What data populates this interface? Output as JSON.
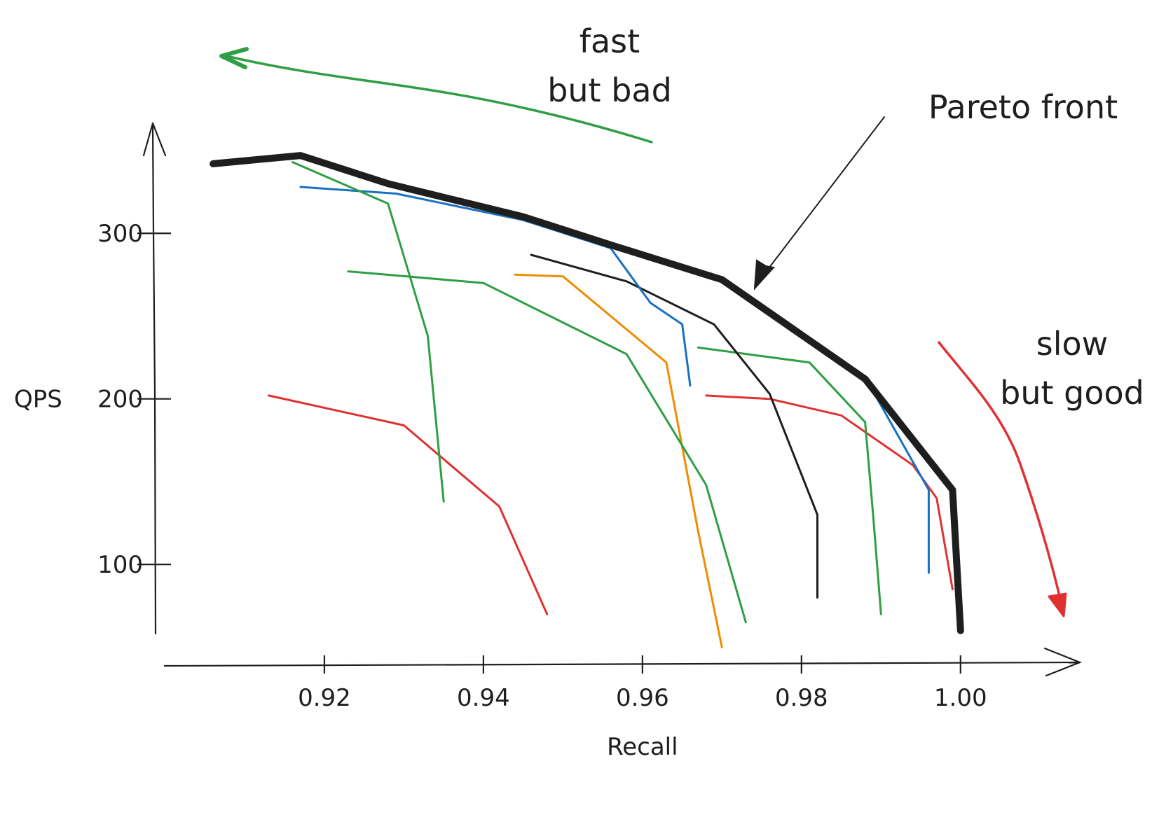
{
  "chart_data": {
    "type": "line",
    "xlabel": "Recall",
    "ylabel": "QPS",
    "xlim": [
      0.9,
      1.015
    ],
    "ylim": [
      40,
      350
    ],
    "x_ticks": [
      0.92,
      0.94,
      0.96,
      0.98,
      1.0
    ],
    "x_tick_labels": [
      "0.92",
      "0.94",
      "0.96",
      "0.98",
      "1.00"
    ],
    "y_ticks": [
      100,
      200,
      300
    ],
    "y_tick_labels": [
      "100",
      "200",
      "300"
    ],
    "series": [
      {
        "color": "#1e1e1e",
        "style": "pareto",
        "points": [
          [
            0.906,
            342
          ],
          [
            0.917,
            347
          ],
          [
            0.928,
            330
          ],
          [
            0.945,
            310
          ],
          [
            0.956,
            293
          ],
          [
            0.97,
            272
          ],
          [
            0.988,
            212
          ],
          [
            0.999,
            145
          ],
          [
            1.0,
            60
          ]
        ]
      },
      {
        "color": "#2f9e44",
        "points": [
          [
            0.916,
            343
          ],
          [
            0.928,
            318
          ],
          [
            0.931,
            270
          ],
          [
            0.933,
            238
          ],
          [
            0.935,
            138
          ]
        ]
      },
      {
        "color": "#1971c2",
        "points": [
          [
            0.917,
            328
          ],
          [
            0.929,
            324
          ],
          [
            0.945,
            308
          ],
          [
            0.956,
            291
          ],
          [
            0.961,
            258
          ],
          [
            0.965,
            245
          ],
          [
            0.966,
            208
          ]
        ]
      },
      {
        "color": "#2f9e44",
        "points": [
          [
            0.923,
            277
          ],
          [
            0.94,
            270
          ],
          [
            0.958,
            227
          ],
          [
            0.968,
            148
          ],
          [
            0.973,
            65
          ]
        ]
      },
      {
        "color": "#f08c00",
        "points": [
          [
            0.944,
            275
          ],
          [
            0.95,
            274
          ],
          [
            0.963,
            222
          ],
          [
            0.967,
            120
          ],
          [
            0.97,
            50
          ]
        ]
      },
      {
        "color": "#1e1e1e",
        "points": [
          [
            0.946,
            287
          ],
          [
            0.958,
            271
          ],
          [
            0.969,
            245
          ],
          [
            0.976,
            203
          ],
          [
            0.982,
            130
          ],
          [
            0.982,
            80
          ]
        ]
      },
      {
        "color": "#2f9e44",
        "points": [
          [
            0.967,
            231
          ],
          [
            0.981,
            222
          ],
          [
            0.988,
            186
          ],
          [
            0.989,
            130
          ],
          [
            0.99,
            70
          ]
        ]
      },
      {
        "color": "#1971c2",
        "points": [
          [
            0.988,
            213
          ],
          [
            0.996,
            145
          ],
          [
            0.996,
            95
          ]
        ]
      },
      {
        "color": "#e03131",
        "points": [
          [
            0.913,
            202
          ],
          [
            0.93,
            184
          ],
          [
            0.942,
            135
          ],
          [
            0.948,
            70
          ]
        ]
      },
      {
        "color": "#e03131",
        "points": [
          [
            0.968,
            202
          ],
          [
            0.976,
            200
          ],
          [
            0.985,
            190
          ],
          [
            0.994,
            160
          ],
          [
            0.997,
            140
          ],
          [
            0.999,
            85
          ]
        ]
      }
    ]
  },
  "annotations": {
    "fast_bad": [
      "fast",
      "but bad"
    ],
    "slow_good": [
      "slow",
      "but good"
    ],
    "pareto": "Pareto front"
  },
  "colors": {
    "ink": "#1e1e1e",
    "green": "#2f9e44",
    "red": "#e03131",
    "blue": "#1971c2",
    "orange": "#f08c00"
  }
}
